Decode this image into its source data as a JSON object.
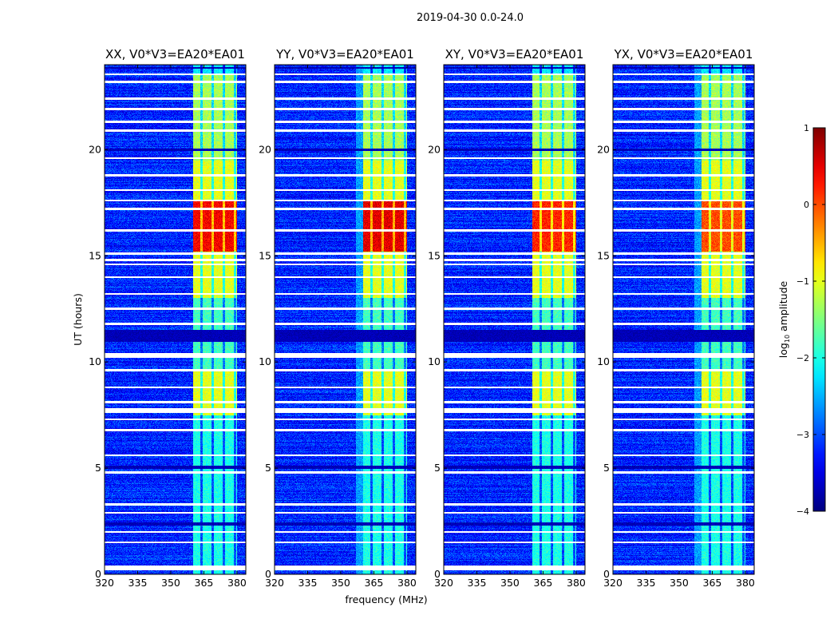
{
  "chart_data": {
    "type": "heatmap",
    "title": "2019-04-30 0.0-24.0",
    "xlabel": "frequency (MHz)",
    "ylabel": "UT (hours)",
    "xlim": [
      320,
      384
    ],
    "ylim": [
      0,
      24
    ],
    "xticks": [
      320,
      335,
      350,
      365,
      380
    ],
    "yticks": [
      0,
      5,
      10,
      15,
      20
    ],
    "panels": [
      {
        "title": "XX, V0*V3=EA20*EA01",
        "peak": 0.6
      },
      {
        "title": "YY, V0*V3=EA20*EA01",
        "peak": 0.7
      },
      {
        "title": "XY, V0*V3=EA20*EA01",
        "peak": 0.4
      },
      {
        "title": "YX, V0*V3=EA20*EA01",
        "peak": 0.2
      }
    ],
    "colorbar": {
      "label_main": "log",
      "label_sub": "10",
      "label_rest": " amplitude",
      "range": [
        -4,
        1
      ],
      "ticks": [
        "1",
        "0",
        "−1",
        "−2",
        "−3",
        "−4"
      ],
      "tick_values": [
        1,
        0,
        -1,
        -2,
        -3,
        -4
      ],
      "colormap": "jet"
    },
    "background_level": -3.2,
    "bright_band_mhz": [
      360,
      380
    ],
    "bright_band_gaps_mhz": [
      364,
      369,
      374,
      379
    ],
    "band_levels": [
      {
        "t": [
          0,
          7.5
        ],
        "level": -2.0
      },
      {
        "t": [
          7.5,
          9.6
        ],
        "level": -1.0
      },
      {
        "t": [
          9.6,
          13.0
        ],
        "level": -1.8
      },
      {
        "t": [
          13.0,
          15.2
        ],
        "level": -1.0
      },
      {
        "t": [
          15.2,
          17.6
        ],
        "level": 0.2
      },
      {
        "t": [
          17.6,
          19.5
        ],
        "level": -1.0
      },
      {
        "t": [
          19.5,
          23.6
        ],
        "level": -1.3
      },
      {
        "t": [
          23.6,
          24
        ],
        "level": -2.2
      }
    ],
    "flagged_hours": [
      0.3,
      1.5,
      2.0,
      2.9,
      3.3,
      4.8,
      5.6,
      6.8,
      7.3,
      7.7,
      8.1,
      8.8,
      9.6,
      10.3,
      11.8,
      12.5,
      13.2,
      14.0,
      14.6,
      14.8,
      15.1,
      16.2,
      17.2,
      17.6,
      18.1,
      18.8,
      19.6,
      20.9,
      21.3,
      21.9,
      22.4,
      23.2,
      23.55
    ],
    "dropout_hours": [
      [
        2.3,
        2.45
      ],
      [
        4.95,
        5.1
      ],
      [
        10.95,
        11.5
      ],
      [
        19.95,
        20.05
      ],
      [
        23.8,
        23.9
      ]
    ]
  }
}
